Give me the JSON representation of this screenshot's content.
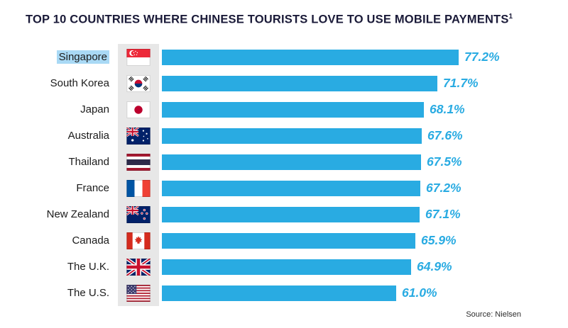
{
  "title": {
    "text": "TOP 10 COUNTRIES WHERE CHINESE TOURISTS LOVE TO USE MOBILE PAYMENTS",
    "superscript": "1"
  },
  "source": "Source: Nielsen",
  "colors": {
    "bar": "#29ABE2",
    "value_text": "#29ABE2",
    "label_highlight": "#A9D9F5",
    "flag_strip": "#E7E7E7",
    "title_text": "#1A1A38"
  },
  "chart_data": {
    "type": "bar",
    "orientation": "horizontal",
    "title": "TOP 10 COUNTRIES WHERE CHINESE TOURISTS LOVE TO USE MOBILE PAYMENTS¹",
    "categories": [
      "Singapore",
      "South Korea",
      "Japan",
      "Australia",
      "Thailand",
      "France",
      "New Zealand",
      "Canada",
      "The U.K.",
      "The U.S."
    ],
    "values": [
      77.2,
      71.7,
      68.1,
      67.6,
      67.5,
      67.2,
      67.1,
      65.9,
      64.9,
      61.0
    ],
    "value_labels": [
      "77.2%",
      "71.7%",
      "68.1%",
      "67.6%",
      "67.5%",
      "67.2%",
      "67.1%",
      "65.9%",
      "64.9%",
      "61.0%"
    ],
    "flags": [
      "singapore",
      "south-korea",
      "japan",
      "australia",
      "thailand",
      "france",
      "new-zealand",
      "canada",
      "uk",
      "us"
    ],
    "highlighted_category": "Singapore",
    "unit": "%",
    "xlim": [
      0,
      80
    ],
    "grid": false,
    "legend": false,
    "source": "Source: Nielsen"
  }
}
